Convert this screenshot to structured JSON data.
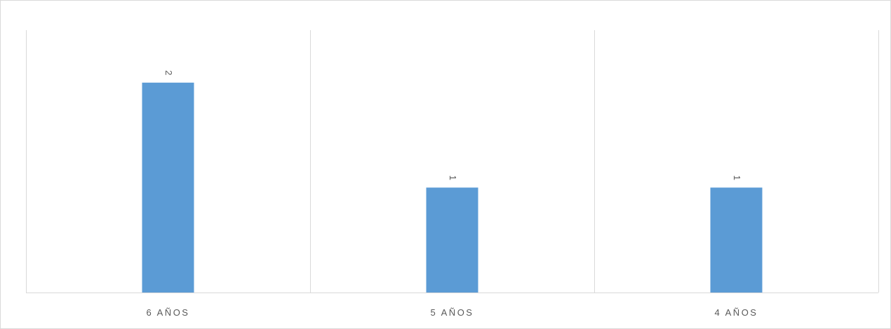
{
  "chart_data": {
    "type": "bar",
    "categories": [
      "6 AÑOS",
      "5 AÑOS",
      "4 AÑOS"
    ],
    "values": [
      2,
      1,
      1
    ],
    "data_labels": [
      "2",
      "1",
      "1"
    ],
    "title": "",
    "xlabel": "",
    "ylabel": "",
    "ylim": [
      0,
      2.5
    ],
    "grid": "vertical category separators",
    "legend": "none",
    "data_label_orientation": "rotated 90°",
    "colors": {
      "bar": "#5b9bd5",
      "gridline": "#d9d9d9",
      "axis": "#d9d9d9",
      "text": "#595959"
    }
  }
}
